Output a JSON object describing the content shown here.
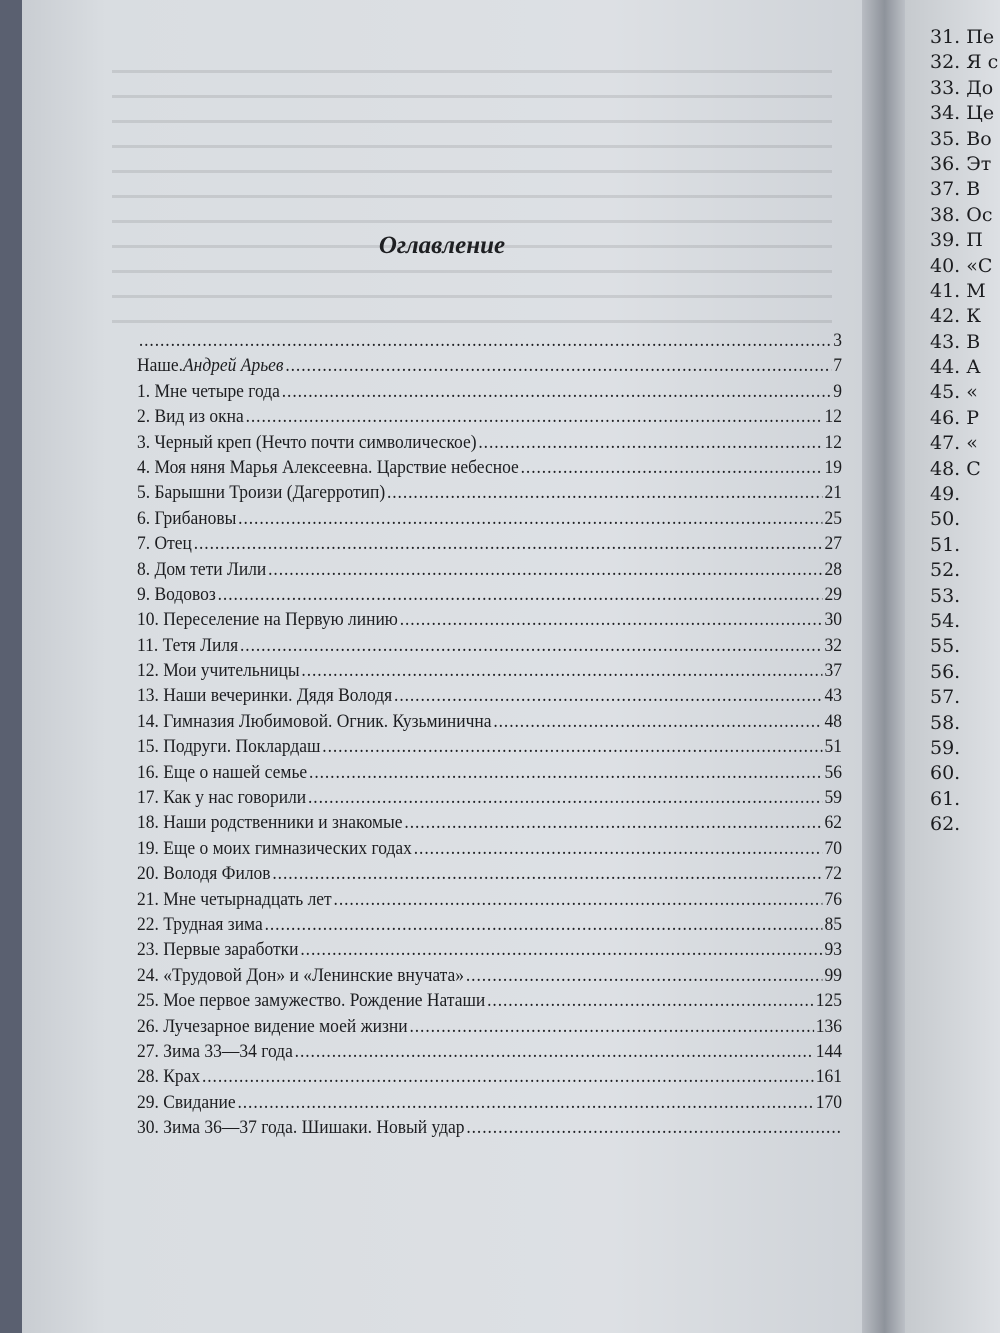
{
  "title": "Оглавление",
  "entries": [
    {
      "title": "",
      "page": "3"
    },
    {
      "title": "Наше.",
      "author": "Андрей Арьев",
      "page": "7"
    },
    {
      "title": "1. Мне четыре года",
      "page": "9"
    },
    {
      "title": "2. Вид из окна",
      "page": "12"
    },
    {
      "title": "3. Черный креп (Нечто почти символическое)",
      "page": "12"
    },
    {
      "title": "4. Моя няня Марья Алексеевна. Царствие небесное",
      "page": "19"
    },
    {
      "title": "5. Барышни Троизи (Дагерротип)",
      "page": "21"
    },
    {
      "title": "6. Грибановы",
      "page": "25"
    },
    {
      "title": "7. Отец",
      "page": "27"
    },
    {
      "title": "8. Дом тети Лили",
      "page": "28"
    },
    {
      "title": "9. Водовоз",
      "page": "29"
    },
    {
      "title": "10. Переселение на Первую линию",
      "page": "30"
    },
    {
      "title": "11. Тетя Лиля",
      "page": "32"
    },
    {
      "title": "12. Мои учительницы",
      "page": "37"
    },
    {
      "title": "13. Наши вечеринки. Дядя Володя",
      "page": "43"
    },
    {
      "title": "14. Гимназия Любимовой. Огник. Кузьминична",
      "page": "48"
    },
    {
      "title": "15. Подруги. Поклардаш",
      "page": "51"
    },
    {
      "title": "16. Еще о нашей семье",
      "page": "56"
    },
    {
      "title": "17. Как у нас говорили",
      "page": "59"
    },
    {
      "title": "18. Наши родственники и знакомые",
      "page": "62"
    },
    {
      "title": "19. Еще о моих гимназических годах",
      "page": "70"
    },
    {
      "title": "20. Володя Филов",
      "page": "72"
    },
    {
      "title": "21. Мне четырнадцать лет",
      "page": "76"
    },
    {
      "title": "22. Трудная зима",
      "page": "85"
    },
    {
      "title": "23. Первые заработки",
      "page": "93"
    },
    {
      "title": "24. «Трудовой Дон» и «Ленинские внучата»",
      "page": "99"
    },
    {
      "title": "25. Мое первое замужество. Рождение Наташи",
      "page": "125"
    },
    {
      "title": "26. Лучезарное видение моей жизни",
      "page": "136"
    },
    {
      "title": "27. Зима 33—34 года",
      "page": "144"
    },
    {
      "title": "28. Крах",
      "page": "161"
    },
    {
      "title": "29. Свидание",
      "page": "170"
    },
    {
      "title": "30. Зима 36—37 года. Шишаки. Новый удар",
      "page": ""
    }
  ],
  "right_page_entries": [
    "31. Пе",
    "32. Я с",
    "33. До",
    "34. Це",
    "35. Во",
    "36. Эт",
    "37. В",
    "38. Ос",
    "39. П",
    "40. «С",
    "41. М",
    "42. К",
    "43. В",
    "44. А",
    "45. «",
    "46. Р",
    "47. «",
    "48. С",
    "49.",
    "50.",
    "51.",
    "52.",
    "53.",
    "54.",
    "55.",
    "56.",
    "57.",
    "58.",
    "59.",
    "60.",
    "61.",
    "62."
  ]
}
